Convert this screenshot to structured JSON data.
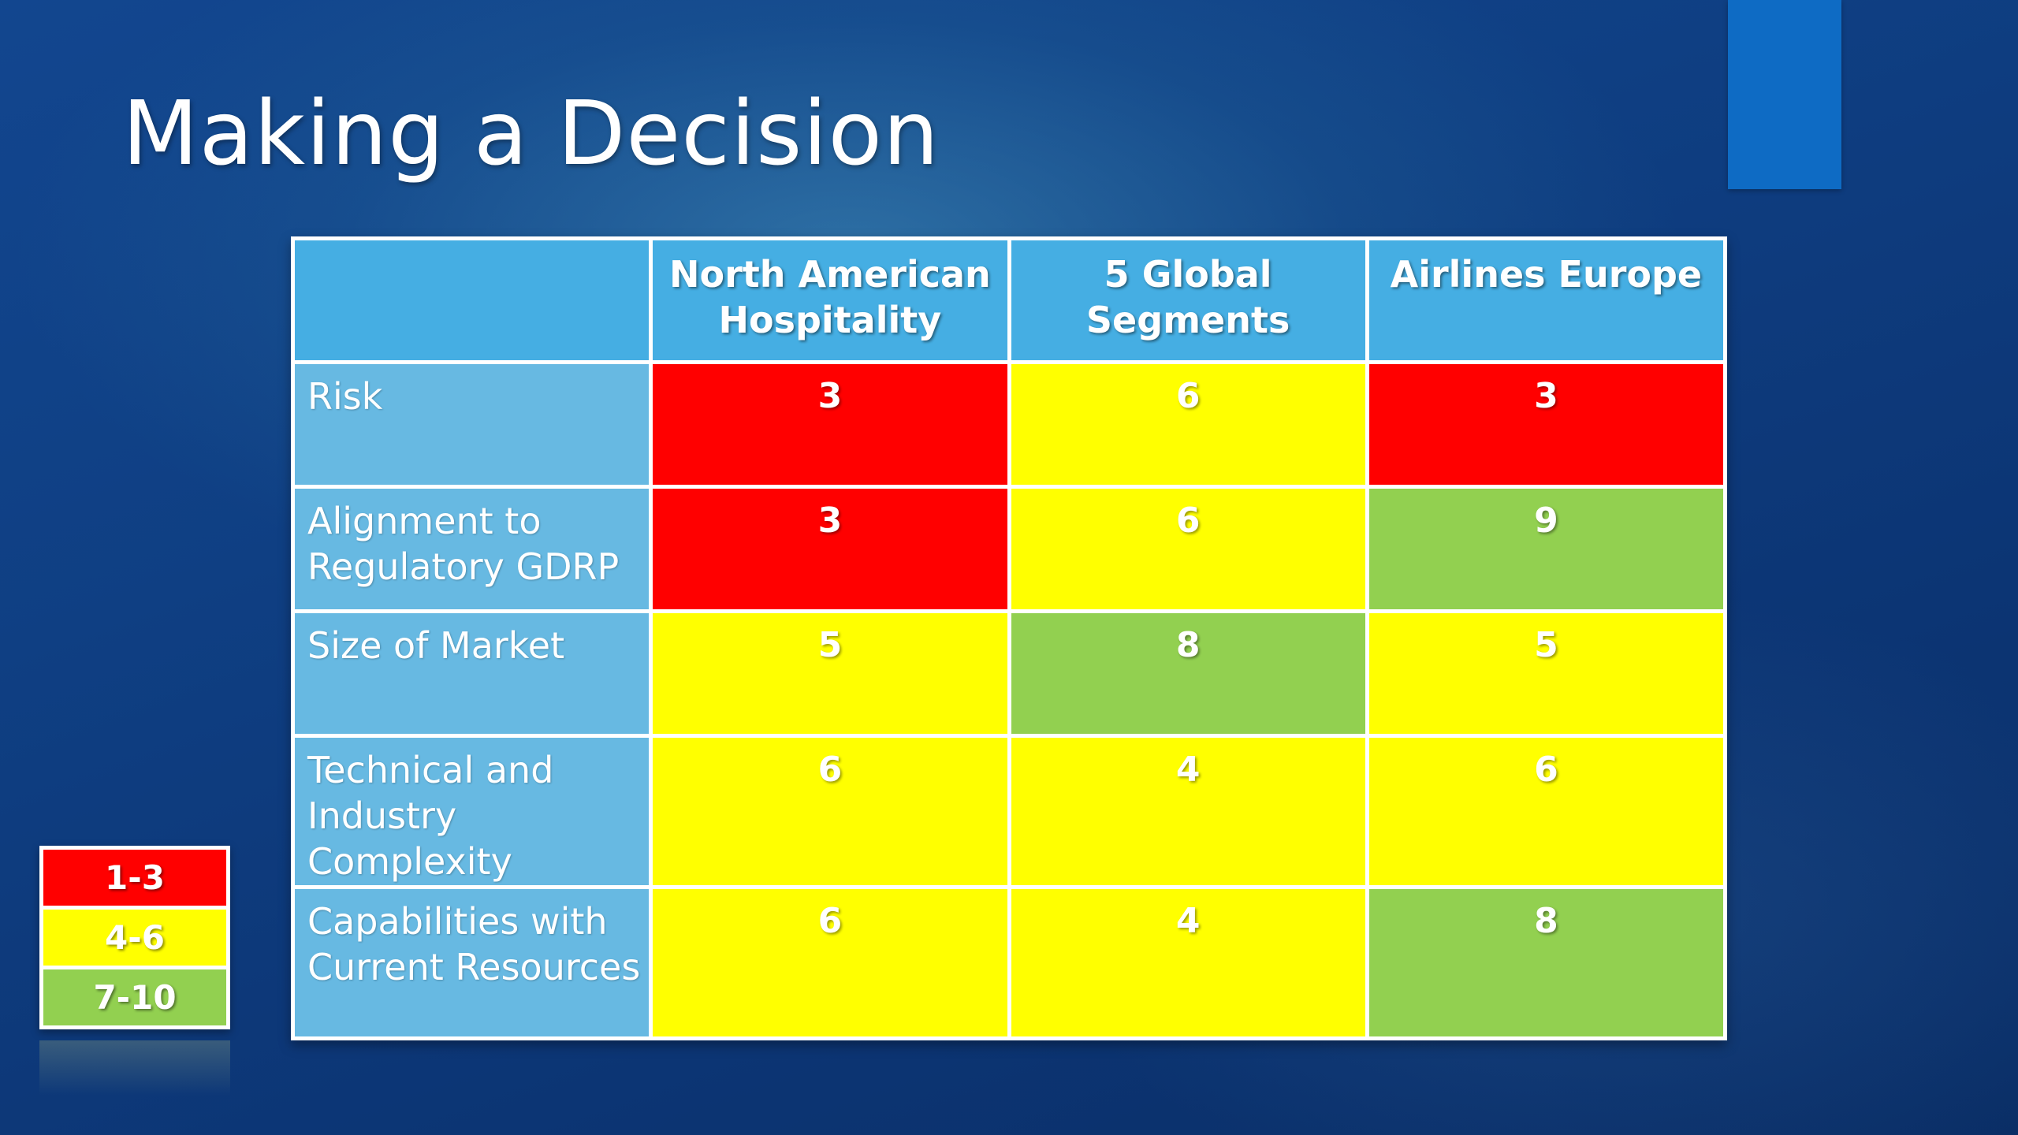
{
  "slide": {
    "title": "Making a Decision"
  },
  "colors": {
    "red": "#ff0000",
    "yellow": "#ffff00",
    "green": "#92d050",
    "header_blue": "#45aee3",
    "row_label_blue": "#67b9e2",
    "accent_blue": "#0e6bc4"
  },
  "table": {
    "columns": [
      "North American Hospitality",
      "5 Global Segments",
      "Airlines Europe"
    ],
    "rows": [
      {
        "label": "Risk",
        "scores": [
          {
            "value": "3",
            "color": "#ff0000"
          },
          {
            "value": "6",
            "color": "#ffff00"
          },
          {
            "value": "3",
            "color": "#ff0000"
          }
        ]
      },
      {
        "label": "Alignment to Regulatory GDRP",
        "scores": [
          {
            "value": "3",
            "color": "#ff0000"
          },
          {
            "value": "6",
            "color": "#ffff00"
          },
          {
            "value": "9",
            "color": "#92d050"
          }
        ]
      },
      {
        "label": "Size of Market",
        "scores": [
          {
            "value": "5",
            "color": "#ffff00"
          },
          {
            "value": "8",
            "color": "#92d050"
          },
          {
            "value": "5",
            "color": "#ffff00"
          }
        ]
      },
      {
        "label": "Technical and Industry Complexity",
        "scores": [
          {
            "value": "6",
            "color": "#ffff00"
          },
          {
            "value": "4",
            "color": "#ffff00"
          },
          {
            "value": "6",
            "color": "#ffff00"
          }
        ]
      },
      {
        "label": "Capabilities with Current Resources",
        "scores": [
          {
            "value": "6",
            "color": "#ffff00"
          },
          {
            "value": "4",
            "color": "#ffff00"
          },
          {
            "value": "8",
            "color": "#92d050"
          }
        ]
      }
    ]
  },
  "legend": [
    {
      "label": "1-3",
      "color": "#ff0000"
    },
    {
      "label": "4-6",
      "color": "#ffff00"
    },
    {
      "label": "7-10",
      "color": "#92d050"
    }
  ]
}
